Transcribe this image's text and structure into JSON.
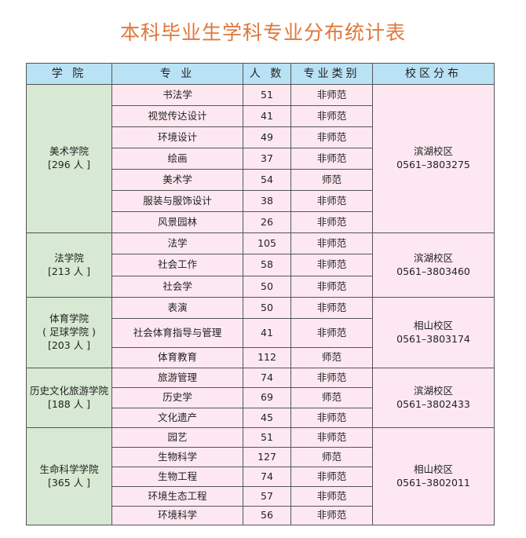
{
  "title": "本科毕业生学科专业分布统计表",
  "colors": {
    "title": "#e0773a",
    "header_bg": "#b9e2f5",
    "college_bg": "#d7e9d2",
    "cell_bg": "#fde8f1"
  },
  "headers": [
    "学 院",
    "专 业",
    "人 数",
    "专业类别",
    "校区分布"
  ],
  "colleges": [
    {
      "name": "美术学院",
      "total": "[296 人 ]",
      "campus": "滨湖校区",
      "phone": "0561–3803275",
      "majors": [
        [
          "书法学",
          "51",
          "非师范"
        ],
        [
          "视觉传达设计",
          "41",
          "非师范"
        ],
        [
          "环境设计",
          "49",
          "非师范"
        ],
        [
          "绘画",
          "37",
          "非师范"
        ],
        [
          "美术学",
          "54",
          "师范"
        ],
        [
          "服装与服饰设计",
          "38",
          "非师范"
        ],
        [
          "风景园林",
          "26",
          "非师范"
        ]
      ]
    },
    {
      "name": "法学院",
      "total": "[213 人 ]",
      "campus": "滨湖校区",
      "phone": "0561–3803460",
      "majors": [
        [
          "法学",
          "105",
          "非师范"
        ],
        [
          "社会工作",
          "58",
          "非师范"
        ],
        [
          "社会学",
          "50",
          "非师范"
        ]
      ]
    },
    {
      "name": "体育学院",
      "subname": "( 足球学院 )",
      "total": "[203 人 ]",
      "campus": "相山校区",
      "phone": "0561–3803174",
      "majors": [
        [
          "表演",
          "50",
          "非师范"
        ],
        [
          "社会体育指导与管理",
          "41",
          "非师范"
        ],
        [
          "体育教育",
          "112",
          "师范"
        ]
      ]
    },
    {
      "name": "历史文化旅游学院",
      "total": "[188 人 ]",
      "campus": "滨湖校区",
      "phone": "0561–3802433",
      "majors": [
        [
          "旅游管理",
          "74",
          "非师范"
        ],
        [
          "历史学",
          "69",
          "师范"
        ],
        [
          "文化遗产",
          "45",
          "非师范"
        ]
      ]
    },
    {
      "name": "生命科学学院",
      "total": "[365 人 ]",
      "campus": "相山校区",
      "phone": "0561–3802011",
      "majors": [
        [
          "园艺",
          "51",
          "非师范"
        ],
        [
          "生物科学",
          "127",
          "师范"
        ],
        [
          "生物工程",
          "74",
          "非师范"
        ],
        [
          "环境生态工程",
          "57",
          "非师范"
        ],
        [
          "环境科学",
          "56",
          "非师范"
        ]
      ]
    }
  ]
}
